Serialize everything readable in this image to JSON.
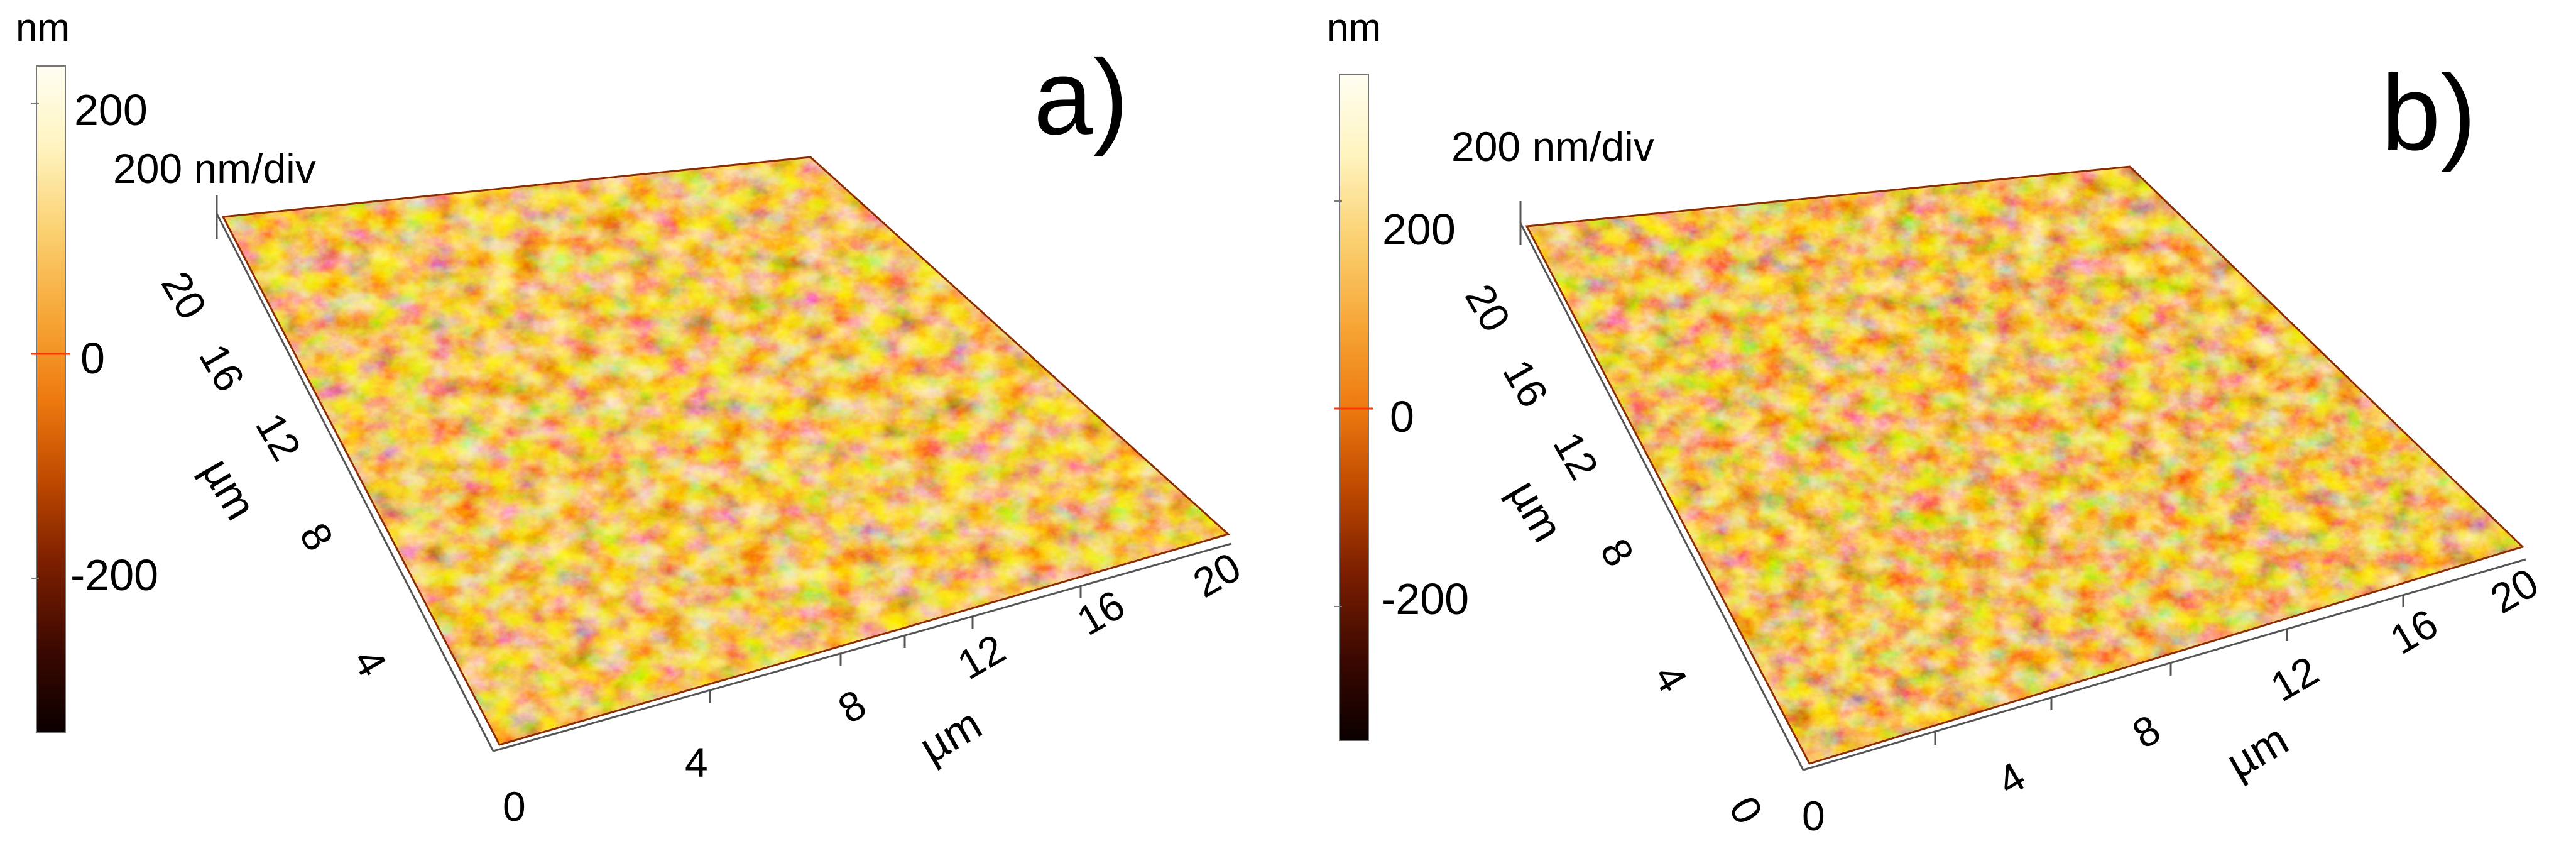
{
  "panels": [
    {
      "letter": "a)",
      "colorbar": {
        "unit": "nm",
        "ticks": [
          "200",
          "0",
          "-200"
        ]
      },
      "scale_label": "200 nm/div",
      "x_axis": {
        "ticks": [
          "0",
          "4",
          "8",
          "12",
          "16",
          "20"
        ],
        "unit": "µm"
      },
      "y_axis": {
        "ticks": [
          "4",
          "8",
          "12",
          "16",
          "20"
        ],
        "unit": "µm"
      }
    },
    {
      "letter": "b)",
      "colorbar": {
        "unit": "nm",
        "ticks": [
          "200",
          "0",
          "-200"
        ]
      },
      "scale_label": "200 nm/div",
      "x_axis": {
        "ticks": [
          "0",
          "4",
          "8",
          "12",
          "16",
          "20"
        ],
        "unit": "µm"
      },
      "y_axis": {
        "ticks": [
          "0",
          "4",
          "8",
          "12",
          "16",
          "20"
        ],
        "unit": "µm"
      }
    }
  ],
  "colors": {
    "colormap": [
      "#0a0000",
      "#3a0800",
      "#7a1e00",
      "#c04a00",
      "#ee7a10",
      "#f6a535",
      "#fbd070",
      "#fff4c0",
      "#fffef2"
    ],
    "zero_marker": "#ff3300",
    "axis": "#555555"
  }
}
